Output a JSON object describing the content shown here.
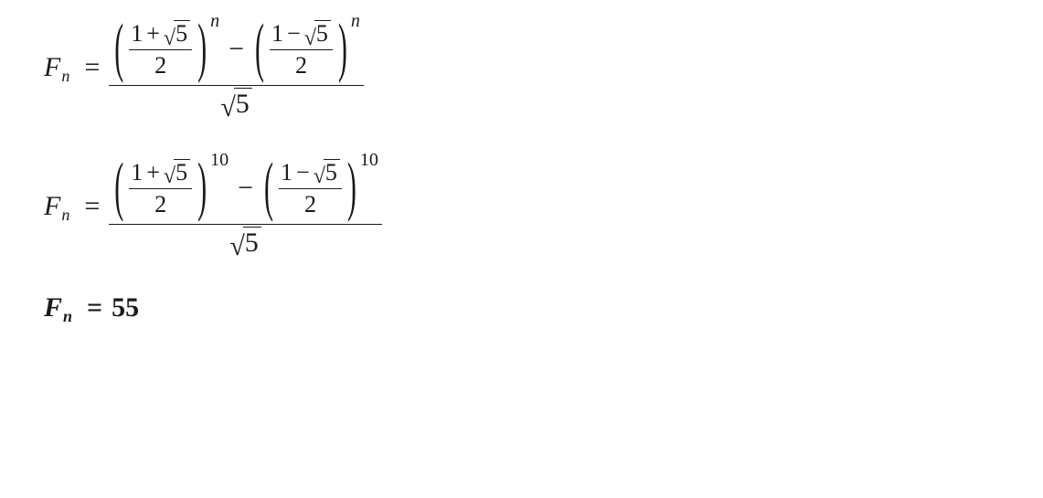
{
  "colors": {
    "text": "#1a1a1a",
    "background": "#ffffff",
    "rule": "#1a1a1a"
  },
  "font": {
    "family": "Cambria Math / Times New Roman",
    "base_size_pt": 30,
    "sub_size_pt": 18,
    "exp_size_pt": 20,
    "inner_size_pt": 26
  },
  "equations": [
    {
      "id": "binet-general",
      "bold": false,
      "lhs": {
        "symbol": "F",
        "subscript": "n"
      },
      "rhs": {
        "type": "fraction",
        "numerator": {
          "type": "difference",
          "terms": [
            {
              "type": "power",
              "base_fraction": {
                "num_expr": {
                  "a": "1",
                  "op": "+",
                  "sqrt_of": "5"
                },
                "den": "2"
              },
              "exponent": "n",
              "exponent_italic": true
            },
            {
              "type": "power",
              "base_fraction": {
                "num_expr": {
                  "a": "1",
                  "op": "−",
                  "sqrt_of": "5"
                },
                "den": "2"
              },
              "exponent": "n",
              "exponent_italic": true
            }
          ]
        },
        "denominator": {
          "type": "sqrt",
          "of": "5"
        }
      }
    },
    {
      "id": "binet-n10",
      "bold": false,
      "lhs": {
        "symbol": "F",
        "subscript": "n"
      },
      "rhs": {
        "type": "fraction",
        "numerator": {
          "type": "difference",
          "terms": [
            {
              "type": "power",
              "base_fraction": {
                "num_expr": {
                  "a": "1",
                  "op": "+",
                  "sqrt_of": "5"
                },
                "den": "2"
              },
              "exponent": "10",
              "exponent_italic": false
            },
            {
              "type": "power",
              "base_fraction": {
                "num_expr": {
                  "a": "1",
                  "op": "−",
                  "sqrt_of": "5"
                },
                "den": "2"
              },
              "exponent": "10",
              "exponent_italic": false
            }
          ]
        },
        "denominator": {
          "type": "sqrt",
          "of": "5"
        }
      }
    },
    {
      "id": "result",
      "bold": true,
      "lhs": {
        "symbol": "F",
        "subscript": "n"
      },
      "rhs_value": "55"
    }
  ],
  "glyphs": {
    "equals": "=",
    "minus": "−",
    "lparen": "(",
    "rparen": ")",
    "radical": "√"
  }
}
